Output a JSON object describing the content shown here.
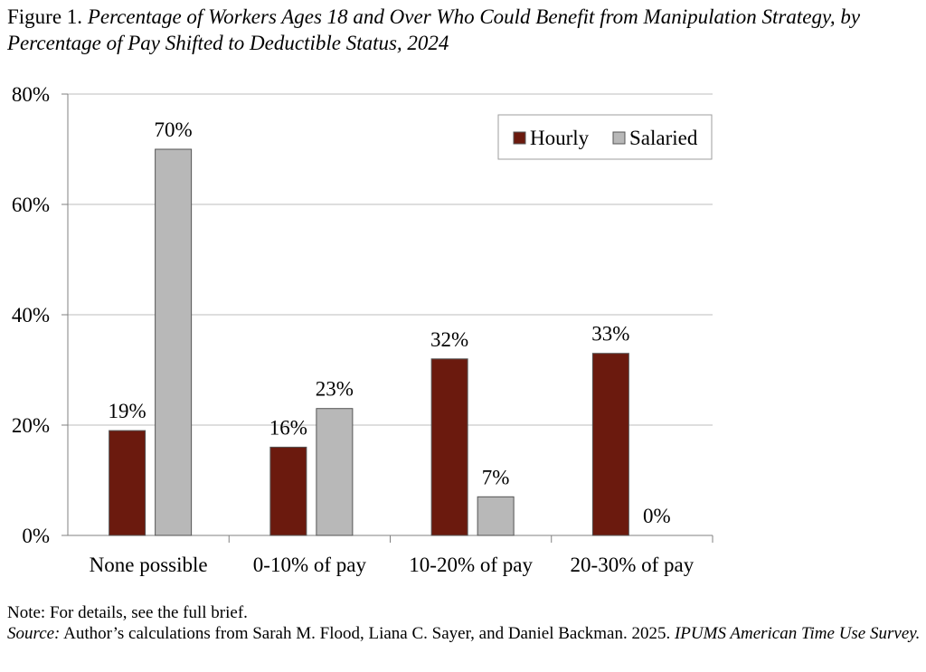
{
  "figure": {
    "label": "Figure 1.",
    "title": "Percentage of Workers Ages 18 and Over Who Could Benefit from Manipulation Strategy, by Percentage of Pay Shifted to Deductible Status, 2024"
  },
  "chart_data": {
    "type": "bar",
    "categories": [
      "None possible",
      "0-10% of pay",
      "10-20% of pay",
      "20-30% of pay"
    ],
    "series": [
      {
        "name": "Hourly",
        "values": [
          19,
          16,
          32,
          33
        ],
        "color": "#6b1a0e"
      },
      {
        "name": "Salaried",
        "values": [
          70,
          23,
          7,
          0
        ],
        "color": "#b8b8b8"
      }
    ],
    "data_labels": [
      [
        "19%",
        "16%",
        "32%",
        "33%"
      ],
      [
        "70%",
        "23%",
        "7%",
        "0%"
      ]
    ],
    "yticks": [
      "0%",
      "20%",
      "40%",
      "60%",
      "80%"
    ],
    "ylim": [
      0,
      80
    ],
    "grid": true,
    "legend_position": "top-right"
  },
  "notes": {
    "note": "Note: For details, see the full brief.",
    "source_label": "Source:",
    "source_text": " Author’s calculations from Sarah M. Flood, Liana C. Sayer, and Daniel Backman. 2025. ",
    "source_italic": "IPUMS American Time Use Survey."
  }
}
